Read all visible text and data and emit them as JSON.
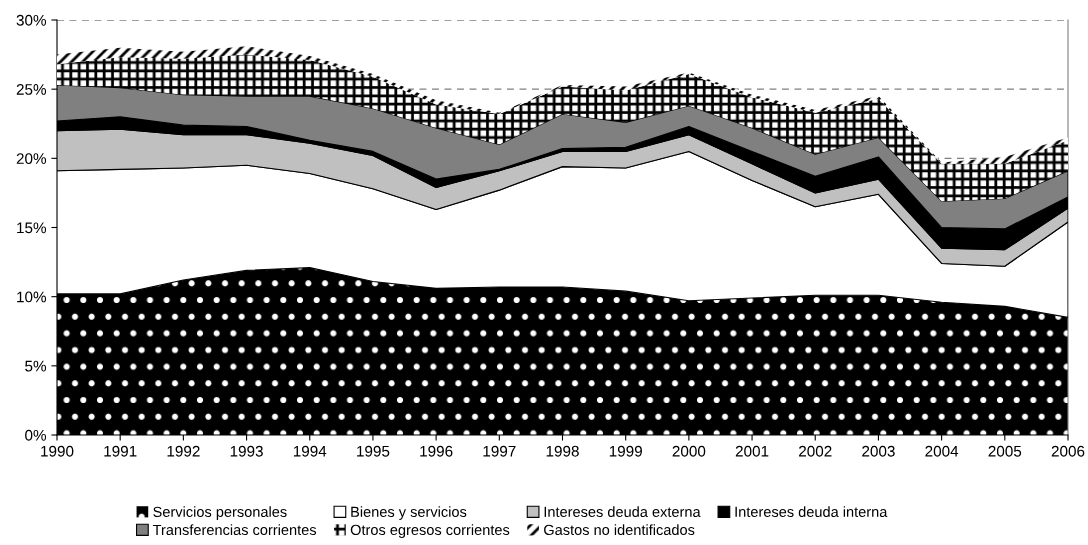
{
  "chart_data": {
    "type": "area",
    "stacked": true,
    "x": [
      1990,
      1991,
      1992,
      1993,
      1994,
      1995,
      1996,
      1997,
      1998,
      1999,
      2000,
      2001,
      2002,
      2003,
      2004,
      2005,
      2006
    ],
    "xlim": [
      1990,
      2006
    ],
    "xticks": [
      1990,
      1991,
      1992,
      1993,
      1994,
      1995,
      1996,
      1997,
      1998,
      1999,
      2000,
      2001,
      2002,
      2003,
      2004,
      2005,
      2006
    ],
    "ylim": [
      0,
      30
    ],
    "yticks": [
      {
        "value": 0,
        "label": "0%"
      },
      {
        "value": 5,
        "label": "5%"
      },
      {
        "value": 10,
        "label": "10%"
      },
      {
        "value": 15,
        "label": "15%"
      },
      {
        "value": 20,
        "label": "20%"
      },
      {
        "value": 25,
        "label": "25%"
      },
      {
        "value": 30,
        "label": "30%"
      }
    ],
    "grid": "y",
    "legend": "bottom",
    "series": [
      {
        "name": "Servicios personales",
        "color": "#000000",
        "values": [
          10.2,
          10.2,
          11.2,
          11.9,
          12.1,
          11.1,
          10.6,
          10.7,
          10.7,
          10.4,
          9.7,
          9.9,
          10.1,
          10.1,
          9.6,
          9.3,
          8.5
        ]
      },
      {
        "name": "Bienes y servicios",
        "color": "#ffffff",
        "values": [
          8.9,
          9.0,
          8.1,
          7.6,
          6.8,
          6.7,
          5.7,
          7.0,
          8.7,
          8.9,
          10.8,
          8.5,
          6.4,
          7.3,
          2.8,
          2.9,
          6.9
        ]
      },
      {
        "name": "Intereses deuda externa",
        "color": "#c0c0c0",
        "values": [
          2.9,
          2.9,
          2.4,
          2.2,
          2.2,
          2.4,
          1.6,
          1.4,
          1.1,
          1.2,
          1.2,
          1.2,
          1.0,
          1.1,
          1.1,
          1.2,
          1.0
        ]
      },
      {
        "name": "Intereses deuda interna",
        "color": "#000000",
        "values": [
          0.7,
          0.9,
          0.7,
          0.6,
          0.2,
          0.3,
          0.6,
          0.1,
          0.2,
          0.3,
          0.6,
          0.9,
          1.2,
          1.6,
          1.5,
          1.5,
          0.8
        ]
      },
      {
        "name": "Transferencias corrientes",
        "color": "#808080",
        "values": [
          2.6,
          2.1,
          2.2,
          2.2,
          3.2,
          3.1,
          3.7,
          1.8,
          2.5,
          1.8,
          1.5,
          1.7,
          1.6,
          1.4,
          1.9,
          2.2,
          1.9
        ]
      },
      {
        "name": "Otros egresos corrientes",
        "color": "#ffffff",
        "values": [
          1.5,
          2.2,
          2.6,
          3.0,
          2.6,
          2.3,
          1.7,
          2.2,
          2.0,
          2.3,
          2.3,
          2.2,
          3.0,
          2.8,
          2.7,
          2.5,
          2.2
        ]
      },
      {
        "name": "Gastos no identificados",
        "color": "#ffffff",
        "values": [
          0.7,
          0.7,
          0.5,
          0.6,
          0.3,
          0.2,
          0.3,
          0.1,
          0.1,
          0.3,
          0.1,
          0.2,
          0.2,
          0.2,
          0.1,
          0.5,
          0.2
        ]
      }
    ]
  }
}
